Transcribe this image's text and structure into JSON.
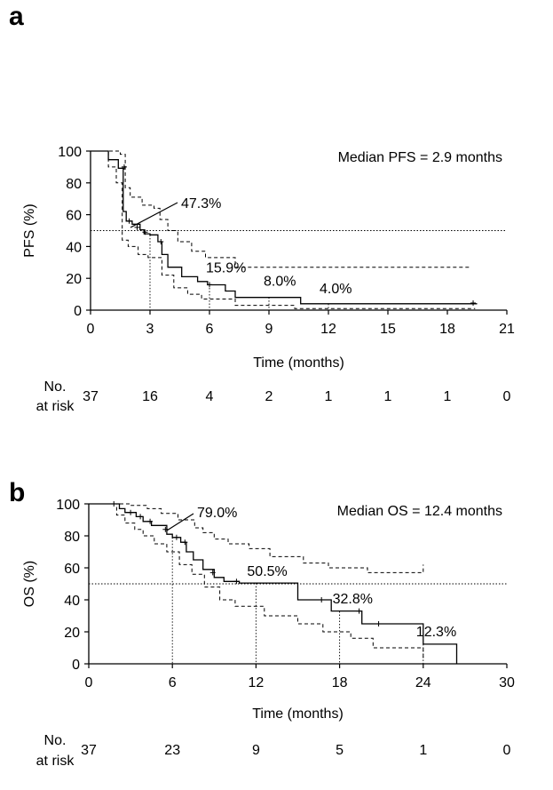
{
  "panels": [
    {
      "letter": "a",
      "median_text": "Median PFS = 2.9 months",
      "annotations": [
        {
          "text": "47.3%",
          "x": 2.6,
          "y": 47.3,
          "pointer": true
        },
        {
          "text": "15.9%",
          "x": 6,
          "y": 15.9,
          "pointer": false
        },
        {
          "text": "8.0%",
          "x": 9,
          "y": 8.0,
          "pointer": false
        },
        {
          "text": "4.0%",
          "x": 12,
          "y": 4.0,
          "pointer": false
        }
      ],
      "risk_label": [
        "No.",
        "at risk"
      ],
      "risk_numbers": [
        "37",
        "16",
        "4",
        "2",
        "1",
        "1",
        "1",
        "0"
      ],
      "chart_data": {
        "type": "line",
        "title": "",
        "xlabel": "Time (months)",
        "ylabel": "PFS (%)",
        "xlim": [
          0,
          21
        ],
        "ylim": [
          0,
          100
        ],
        "xticks": [
          0,
          3,
          6,
          9,
          12,
          15,
          18,
          21
        ],
        "yticks": [
          0,
          20,
          40,
          60,
          80,
          100
        ],
        "reference_line_y": 50,
        "milestones": [
          {
            "x": 3,
            "y": 47.3
          },
          {
            "x": 6,
            "y": 15.9
          },
          {
            "x": 9,
            "y": 8.0
          },
          {
            "x": 12,
            "y": 4.0
          }
        ],
        "estimate": [
          [
            0,
            100
          ],
          [
            0.9,
            100
          ],
          [
            0.9,
            94.6
          ],
          [
            1.4,
            94.6
          ],
          [
            1.4,
            89.2
          ],
          [
            1.65,
            89.2
          ],
          [
            1.65,
            62
          ],
          [
            1.8,
            62
          ],
          [
            1.8,
            56
          ],
          [
            2.1,
            56
          ],
          [
            2.1,
            54
          ],
          [
            2.5,
            54
          ],
          [
            2.5,
            50.5
          ],
          [
            2.7,
            50.5
          ],
          [
            2.7,
            48
          ],
          [
            3.0,
            48
          ],
          [
            3.0,
            47.3
          ],
          [
            3.4,
            47.3
          ],
          [
            3.4,
            43
          ],
          [
            3.6,
            43
          ],
          [
            3.6,
            35
          ],
          [
            3.9,
            35
          ],
          [
            3.9,
            27
          ],
          [
            4.6,
            27
          ],
          [
            4.6,
            21
          ],
          [
            5.4,
            21
          ],
          [
            5.4,
            18
          ],
          [
            5.9,
            18
          ],
          [
            5.9,
            15.9
          ],
          [
            6.8,
            15.9
          ],
          [
            6.8,
            12
          ],
          [
            7.3,
            12
          ],
          [
            7.3,
            8
          ],
          [
            10.6,
            8
          ],
          [
            10.6,
            4
          ],
          [
            19.5,
            4
          ]
        ],
        "upper_ci": [
          [
            0,
            100
          ],
          [
            0.9,
            100
          ],
          [
            0.9,
            100
          ],
          [
            1.5,
            100
          ],
          [
            1.5,
            98
          ],
          [
            1.75,
            98
          ],
          [
            1.75,
            77
          ],
          [
            2.0,
            77
          ],
          [
            2.0,
            71
          ],
          [
            2.6,
            71
          ],
          [
            2.6,
            66
          ],
          [
            3.2,
            66
          ],
          [
            3.2,
            64
          ],
          [
            3.5,
            64
          ],
          [
            3.5,
            57
          ],
          [
            3.9,
            57
          ],
          [
            3.9,
            50
          ],
          [
            4.4,
            50
          ],
          [
            4.4,
            43
          ],
          [
            5.1,
            43
          ],
          [
            5.1,
            37
          ],
          [
            5.8,
            37
          ],
          [
            5.8,
            33
          ],
          [
            7.3,
            33
          ],
          [
            7.3,
            27
          ],
          [
            19.2,
            27
          ]
        ],
        "lower_ci": [
          [
            0,
            100
          ],
          [
            0.9,
            100
          ],
          [
            0.9,
            90
          ],
          [
            1.3,
            90
          ],
          [
            1.3,
            80
          ],
          [
            1.6,
            80
          ],
          [
            1.6,
            44
          ],
          [
            1.9,
            44
          ],
          [
            1.9,
            40
          ],
          [
            2.4,
            40
          ],
          [
            2.4,
            35
          ],
          [
            2.9,
            35
          ],
          [
            2.9,
            33
          ],
          [
            3.6,
            33
          ],
          [
            3.6,
            22
          ],
          [
            4.2,
            22
          ],
          [
            4.2,
            14
          ],
          [
            4.9,
            14
          ],
          [
            4.9,
            10
          ],
          [
            5.6,
            10
          ],
          [
            5.6,
            7
          ],
          [
            7.3,
            7
          ],
          [
            7.3,
            3
          ],
          [
            10.3,
            3
          ],
          [
            10.3,
            1
          ],
          [
            19.4,
            1
          ]
        ],
        "censor_marks": [
          [
            1.7,
            90
          ],
          [
            1.95,
            56
          ],
          [
            2.35,
            52
          ],
          [
            2.75,
            49
          ],
          [
            3.55,
            43
          ],
          [
            6.0,
            16
          ],
          [
            19.3,
            4.5
          ]
        ]
      }
    },
    {
      "letter": "b",
      "median_text": "Median OS = 12.4 months",
      "annotations": [
        {
          "text": "79.0%",
          "x": 6,
          "y": 79.0,
          "pointer": true
        },
        {
          "text": "50.5%",
          "x": 12,
          "y": 50.5,
          "pointer": false
        },
        {
          "text": "32.8%",
          "x": 18,
          "y": 32.8,
          "pointer": false
        },
        {
          "text": "12.3%",
          "x": 24,
          "y": 12.3,
          "pointer": false
        }
      ],
      "risk_label": [
        "No.",
        "at risk"
      ],
      "risk_numbers": [
        "37",
        "23",
        "9",
        "5",
        "1",
        "0"
      ],
      "chart_data": {
        "type": "line",
        "title": "",
        "xlabel": "Time (months)",
        "ylabel": "OS (%)",
        "xlim": [
          0,
          30
        ],
        "ylim": [
          0,
          100
        ],
        "xticks": [
          0,
          6,
          12,
          18,
          24,
          30
        ],
        "yticks": [
          0,
          20,
          40,
          60,
          80,
          100
        ],
        "reference_line_y": 50,
        "milestones": [
          {
            "x": 6,
            "y": 79.0
          },
          {
            "x": 12,
            "y": 50.5
          },
          {
            "x": 18,
            "y": 32.8
          },
          {
            "x": 24,
            "y": 12.3
          }
        ],
        "estimate": [
          [
            0,
            100
          ],
          [
            2.2,
            100
          ],
          [
            2.2,
            97
          ],
          [
            2.6,
            97
          ],
          [
            2.6,
            94.6
          ],
          [
            3.4,
            94.6
          ],
          [
            3.4,
            92
          ],
          [
            3.9,
            92
          ],
          [
            3.9,
            89
          ],
          [
            4.5,
            89
          ],
          [
            4.5,
            86.5
          ],
          [
            5.6,
            86.5
          ],
          [
            5.6,
            81
          ],
          [
            6.0,
            81
          ],
          [
            6.0,
            79
          ],
          [
            6.6,
            79
          ],
          [
            6.6,
            76
          ],
          [
            7.0,
            76
          ],
          [
            7.0,
            70
          ],
          [
            7.5,
            70
          ],
          [
            7.5,
            65
          ],
          [
            8.2,
            65
          ],
          [
            8.2,
            59
          ],
          [
            9.0,
            59
          ],
          [
            9.0,
            54
          ],
          [
            9.7,
            54
          ],
          [
            9.7,
            51.5
          ],
          [
            10.8,
            51.5
          ],
          [
            10.8,
            50.5
          ],
          [
            15.0,
            50.5
          ],
          [
            15.0,
            40
          ],
          [
            17.4,
            40
          ],
          [
            17.4,
            33
          ],
          [
            19.6,
            33
          ],
          [
            19.6,
            25
          ],
          [
            21.0,
            25
          ],
          [
            21.0,
            25
          ],
          [
            24.0,
            25
          ],
          [
            24.0,
            12.3
          ],
          [
            26.4,
            12.3
          ],
          [
            26.4,
            0
          ]
        ],
        "upper_ci": [
          [
            0,
            100
          ],
          [
            2.0,
            100
          ],
          [
            2.0,
            100
          ],
          [
            3.0,
            100
          ],
          [
            3.0,
            99
          ],
          [
            4.2,
            99
          ],
          [
            4.2,
            97
          ],
          [
            5.2,
            97
          ],
          [
            5.2,
            94
          ],
          [
            6.4,
            94
          ],
          [
            6.4,
            90
          ],
          [
            7.6,
            90
          ],
          [
            7.6,
            85
          ],
          [
            8.2,
            85
          ],
          [
            8.2,
            82
          ],
          [
            9.0,
            82
          ],
          [
            9.0,
            78
          ],
          [
            10.0,
            78
          ],
          [
            10.0,
            75
          ],
          [
            11.5,
            75
          ],
          [
            11.5,
            72
          ],
          [
            13.0,
            72
          ],
          [
            13.0,
            67
          ],
          [
            15.4,
            67
          ],
          [
            15.4,
            63
          ],
          [
            17.2,
            63
          ],
          [
            17.2,
            60
          ],
          [
            20.0,
            60
          ],
          [
            20.0,
            57
          ],
          [
            24.0,
            57
          ],
          [
            24.0,
            62
          ]
        ],
        "lower_ci": [
          [
            0,
            100
          ],
          [
            2.0,
            100
          ],
          [
            2.0,
            93
          ],
          [
            2.6,
            93
          ],
          [
            2.6,
            88
          ],
          [
            3.3,
            88
          ],
          [
            3.3,
            84
          ],
          [
            3.9,
            84
          ],
          [
            3.9,
            80
          ],
          [
            4.7,
            80
          ],
          [
            4.7,
            75
          ],
          [
            5.6,
            75
          ],
          [
            5.6,
            70
          ],
          [
            6.5,
            70
          ],
          [
            6.5,
            62
          ],
          [
            7.4,
            62
          ],
          [
            7.4,
            56
          ],
          [
            8.3,
            56
          ],
          [
            8.3,
            48
          ],
          [
            9.4,
            48
          ],
          [
            9.4,
            40
          ],
          [
            10.5,
            40
          ],
          [
            10.5,
            36
          ],
          [
            12.6,
            36
          ],
          [
            12.6,
            30
          ],
          [
            15.0,
            30
          ],
          [
            15.0,
            25
          ],
          [
            16.8,
            25
          ],
          [
            16.8,
            20
          ],
          [
            18.8,
            20
          ],
          [
            18.8,
            16
          ],
          [
            20.4,
            16
          ],
          [
            20.4,
            10
          ],
          [
            24.0,
            10
          ],
          [
            24.0,
            2
          ]
        ],
        "censor_marks": [
          [
            1.8,
            100
          ],
          [
            3.0,
            94.6
          ],
          [
            3.7,
            92
          ],
          [
            4.4,
            89
          ],
          [
            5.5,
            84
          ],
          [
            6.3,
            79
          ],
          [
            6.9,
            76
          ],
          [
            8.9,
            57
          ],
          [
            10.6,
            51.5
          ],
          [
            16.7,
            40
          ],
          [
            19.4,
            33
          ],
          [
            20.8,
            25
          ]
        ]
      }
    }
  ]
}
